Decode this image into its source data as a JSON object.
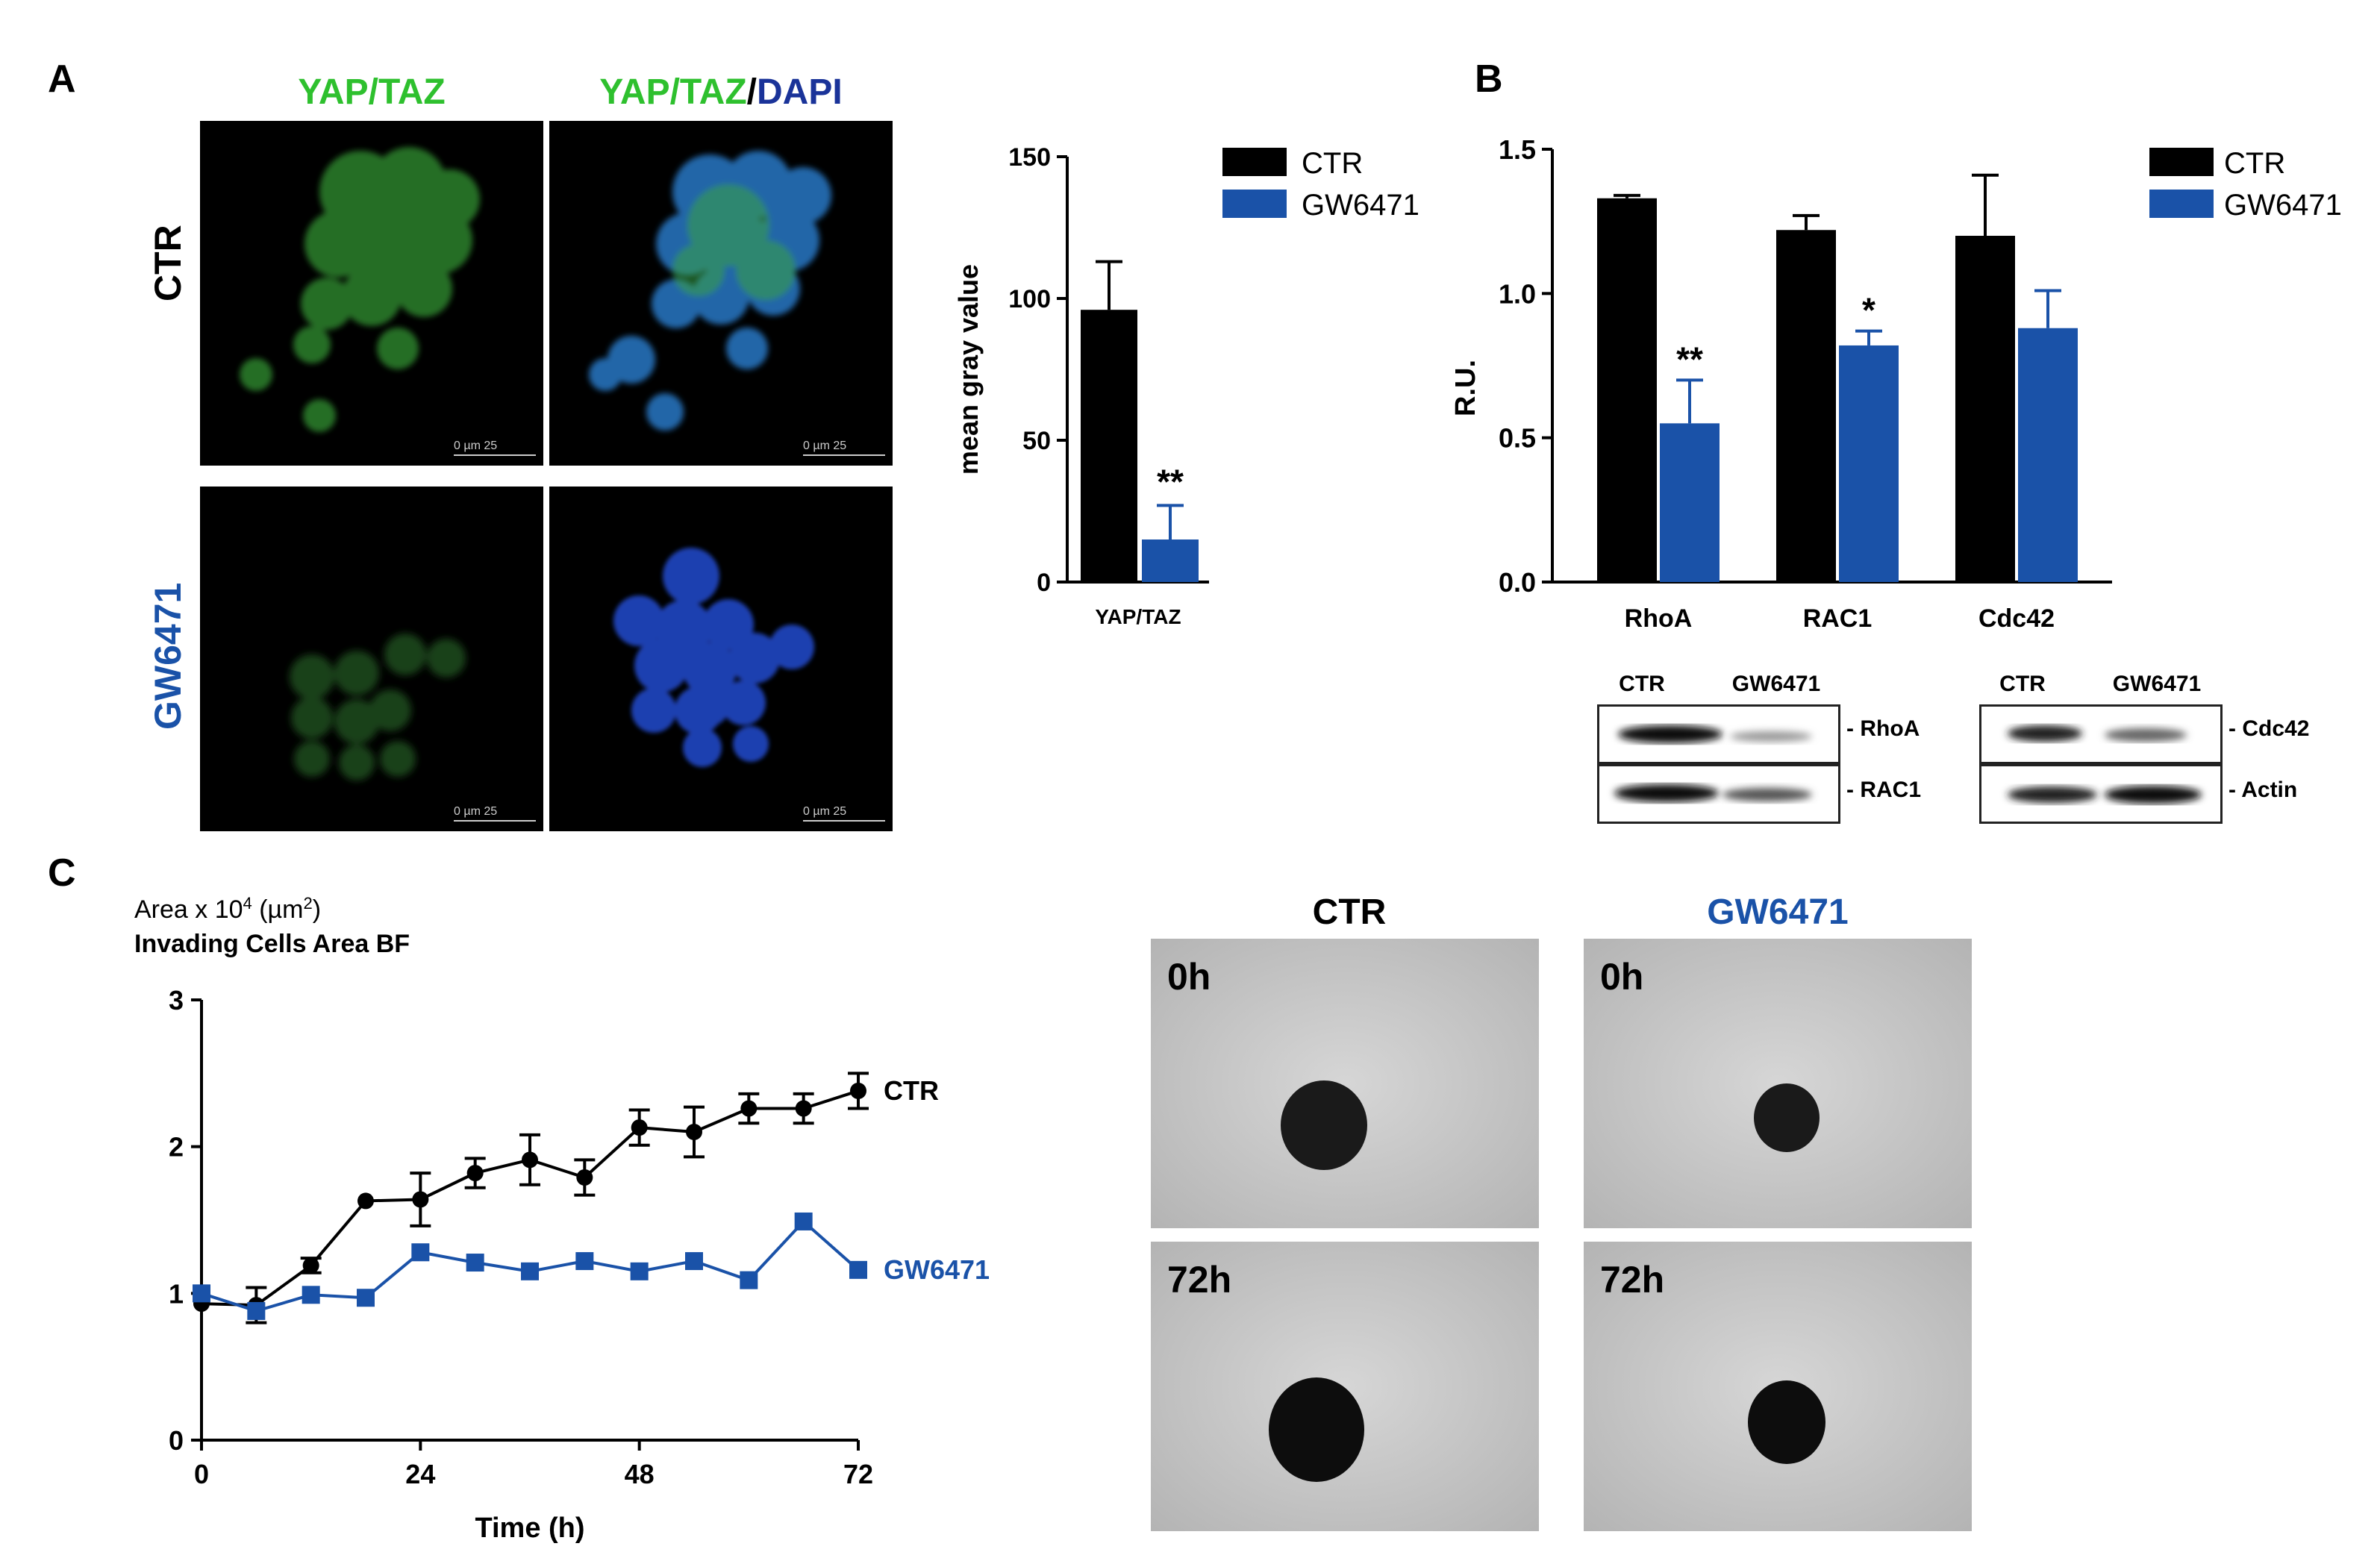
{
  "panels": {
    "a": "A",
    "b": "B",
    "c": "C"
  },
  "panelA": {
    "col_header_1": "YAP/TAZ",
    "col_header_2a": "YAP/TAZ",
    "col_header_2b": "/",
    "col_header_2c": "DAPI",
    "row_label_1": "CTR",
    "row_label_2": "GW6471",
    "scalebar": "0     µm   25"
  },
  "panelB": {
    "blot_cols": [
      "CTR",
      "GW6471"
    ],
    "blot_labels_left": [
      "RhoA",
      "RAC1"
    ],
    "blot_labels_right": [
      "Cdc42",
      "Actin"
    ]
  },
  "panelC": {
    "image_headers": [
      "CTR",
      "GW6471"
    ],
    "time_labels": [
      "0h",
      "72h"
    ]
  },
  "colors": {
    "ctr": "#000000",
    "gw": "#1a52a8",
    "green": "#2ec02e",
    "dapi": "#1a3399"
  },
  "chart_data": [
    {
      "id": "yap-bar",
      "type": "bar",
      "categories": [
        "YAP/TAZ"
      ],
      "series": [
        {
          "name": "CTR",
          "values": [
            96
          ],
          "error": [
            17
          ]
        },
        {
          "name": "GW6471",
          "values": [
            15
          ],
          "error": [
            12
          ],
          "annotation": "**"
        }
      ],
      "ylabel": "mean gray value",
      "ylim": [
        0,
        150
      ],
      "yticks": [
        0,
        50,
        100,
        150
      ],
      "legend": "top-right"
    },
    {
      "id": "ru-bar",
      "type": "bar",
      "categories": [
        "RhoA",
        "RAC1",
        "Cdc42"
      ],
      "series": [
        {
          "name": "CTR",
          "values": [
            1.33,
            1.22,
            1.2
          ],
          "error": [
            0.01,
            0.05,
            0.21
          ]
        },
        {
          "name": "GW6471",
          "values": [
            0.55,
            0.82,
            0.88
          ],
          "error": [
            0.15,
            0.05,
            0.13
          ]
        }
      ],
      "annotations": [
        "**",
        "*",
        ""
      ],
      "ylabel": "R.U.",
      "ylim": [
        0,
        1.5
      ],
      "yticks": [
        "0.0",
        "0.5",
        "1.0",
        "1.5"
      ],
      "legend": "top-right"
    },
    {
      "id": "invasion-line",
      "type": "line",
      "title": "Invading Cells Area BF",
      "ylabel_prefix": "Area x 10",
      "ylabel_exp": "4",
      "ylabel_unit_a": " (µm",
      "ylabel_unit_exp": "2",
      "ylabel_unit_b": ")",
      "xlabel": "Time (h)",
      "xlim": [
        0,
        72
      ],
      "ylim": [
        0,
        3
      ],
      "xticks": [
        0,
        24,
        48,
        72
      ],
      "yticks": [
        0,
        1,
        2,
        3
      ],
      "x": [
        0,
        6,
        12,
        18,
        24,
        30,
        36,
        42,
        48,
        54,
        60,
        66,
        72
      ],
      "series": [
        {
          "name": "CTR",
          "values": [
            0.93,
            0.92,
            1.19,
            1.63,
            1.64,
            1.82,
            1.91,
            1.79,
            2.13,
            2.1,
            2.26,
            2.26,
            2.38
          ],
          "error": [
            0.03,
            0.12,
            0.05,
            0.02,
            0.18,
            0.1,
            0.17,
            0.12,
            0.12,
            0.17,
            0.1,
            0.1,
            0.12
          ]
        },
        {
          "name": "GW6471",
          "values": [
            1.0,
            0.88,
            0.99,
            0.97,
            1.28,
            1.21,
            1.15,
            1.22,
            1.15,
            1.22,
            1.09,
            1.49,
            1.16
          ],
          "error": [
            0.02,
            0.02,
            0.02,
            0.02,
            0.02,
            0.02,
            0.02,
            0.02,
            0.02,
            0.02,
            0.02,
            0.02,
            0.02
          ]
        }
      ]
    }
  ]
}
